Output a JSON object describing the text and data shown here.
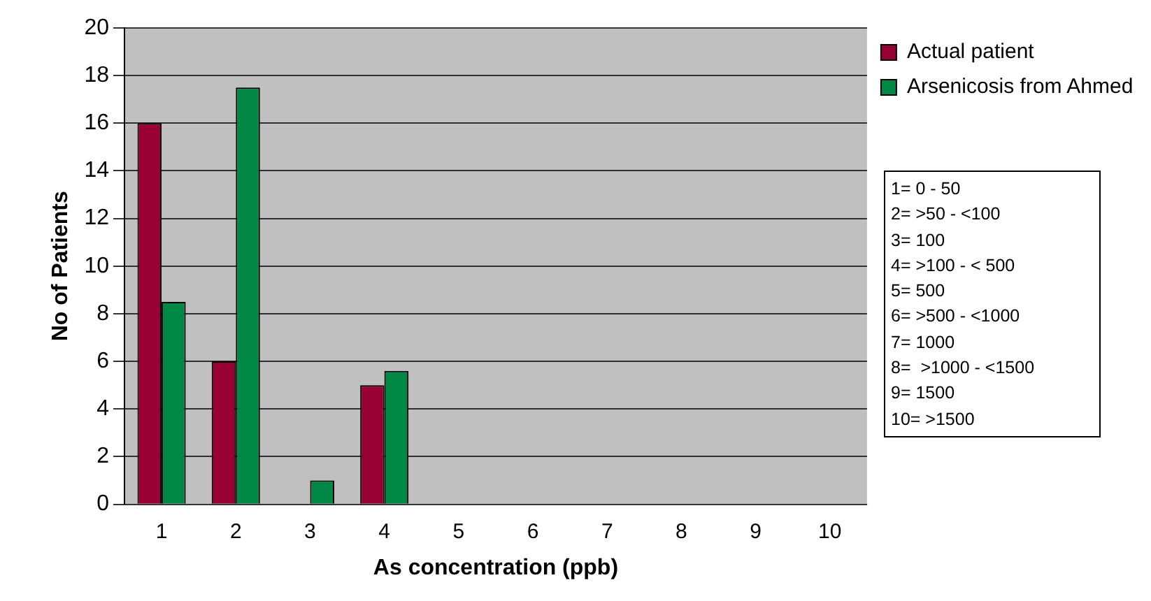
{
  "chart_data": {
    "type": "bar",
    "xlabel": "As concentration (ppb)",
    "ylabel": "No of Patients",
    "categories": [
      "1",
      "2",
      "3",
      "4",
      "5",
      "6",
      "7",
      "8",
      "9",
      "10"
    ],
    "series": [
      {
        "name": "Actual patient",
        "color": "#990033",
        "values": [
          16,
          6,
          0,
          5,
          0,
          0,
          0,
          0,
          0,
          0
        ]
      },
      {
        "name": "Arsenicosis from Ahmed",
        "color": "#008844",
        "values": [
          8.5,
          17.5,
          1,
          5.6,
          0,
          0,
          0,
          0,
          0,
          0
        ]
      }
    ],
    "ylim": [
      0,
      20
    ],
    "yticks": [
      0,
      2,
      4,
      6,
      8,
      10,
      12,
      14,
      16,
      18,
      20
    ],
    "grid": "y",
    "legend": "top right",
    "annotations": [
      "1= 0 - 50",
      "2= >50 - <100",
      "3= 100",
      "4= >100 - < 500",
      "5= 500",
      "6= >500 - <1000",
      "7= 1000",
      "8=  >1000 - <1500",
      "9= 1500",
      "10= >1500"
    ]
  }
}
